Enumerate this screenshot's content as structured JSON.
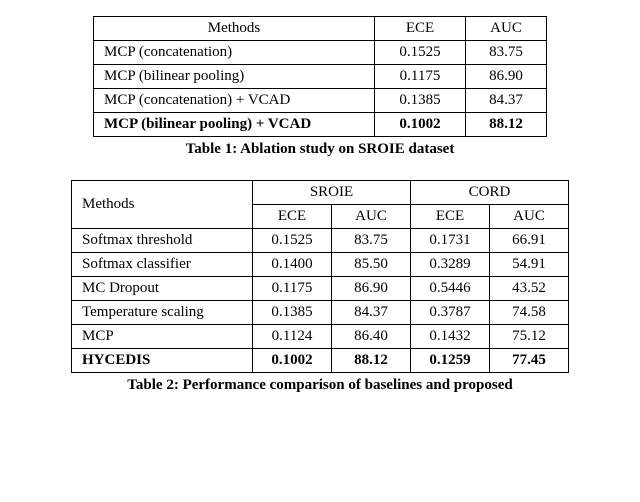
{
  "table1": {
    "headers": {
      "methods": "Methods",
      "ece": "ECE",
      "auc": "AUC"
    },
    "rows": [
      {
        "method": "MCP (concatenation)",
        "ece": "0.1525",
        "auc": "83.75",
        "bold": false
      },
      {
        "method": "MCP (bilinear pooling)",
        "ece": "0.1175",
        "auc": "86.90",
        "bold": false
      },
      {
        "method": "MCP (concatenation) + VCAD",
        "ece": "0.1385",
        "auc": "84.37",
        "bold": false
      },
      {
        "method": "MCP (bilinear pooling) + VCAD",
        "ece": "0.1002",
        "auc": "88.12",
        "bold": true
      }
    ],
    "caption": "Table 1: Ablation study on SROIE dataset"
  },
  "table2": {
    "headers": {
      "methods": "Methods",
      "sroie": "SROIE",
      "cord": "CORD",
      "ece": "ECE",
      "auc": "AUC"
    },
    "rows": [
      {
        "method": "Softmax threshold",
        "sroie_ece": "0.1525",
        "sroie_auc": "83.75",
        "cord_ece": "0.1731",
        "cord_auc": "66.91",
        "bold": false
      },
      {
        "method": "Softmax classifier",
        "sroie_ece": "0.1400",
        "sroie_auc": "85.50",
        "cord_ece": "0.3289",
        "cord_auc": "54.91",
        "bold": false
      },
      {
        "method": "MC Dropout",
        "sroie_ece": "0.1175",
        "sroie_auc": "86.90",
        "cord_ece": "0.5446",
        "cord_auc": "43.52",
        "bold": false
      },
      {
        "method": "Temperature scaling",
        "sroie_ece": "0.1385",
        "sroie_auc": "84.37",
        "cord_ece": "0.3787",
        "cord_auc": "74.58",
        "bold": false
      },
      {
        "method": "MCP",
        "sroie_ece": "0.1124",
        "sroie_auc": "86.40",
        "cord_ece": "0.1432",
        "cord_auc": "75.12",
        "bold": false
      },
      {
        "method": "HYCEDIS",
        "sroie_ece": "0.1002",
        "sroie_auc": "88.12",
        "cord_ece": "0.1259",
        "cord_auc": "77.45",
        "bold": true
      }
    ],
    "caption": "Table 2: Performance comparison of baselines and proposed"
  },
  "colors": {
    "border": "#000000",
    "background": "#ffffff",
    "text": "#000000"
  }
}
